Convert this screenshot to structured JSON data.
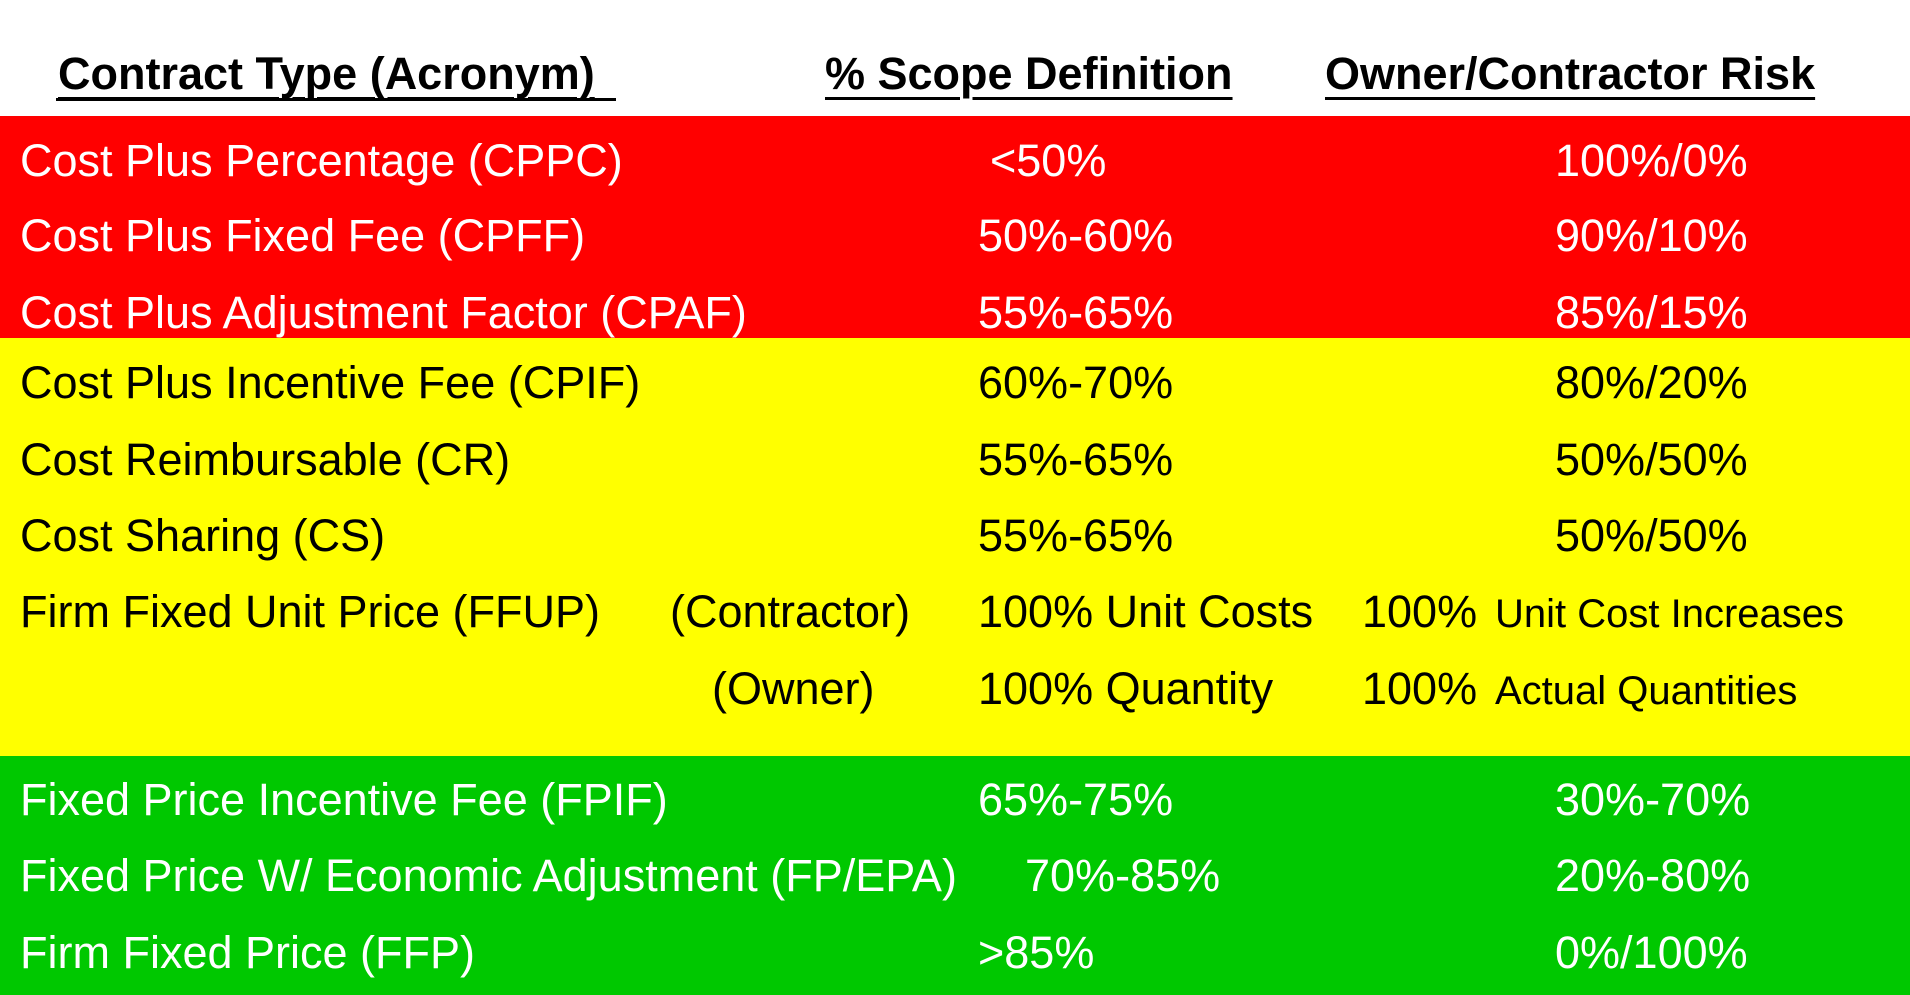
{
  "headers": {
    "contract_type": "Contract Type (Acronym)",
    "scope": "% Scope Definition",
    "risk": "Owner/Contractor Risk"
  },
  "colors": {
    "red": "#ff0000",
    "yellow": "#ffff00",
    "green": "#00c800"
  },
  "rows": [
    {
      "name": "Cost Plus Percentage (CPPC)",
      "scope": "<50%",
      "risk": "100%/0%"
    },
    {
      "name": "Cost Plus Fixed Fee (CPFF)",
      "scope": "50%-60%",
      "risk": "90%/10%"
    },
    {
      "name": "Cost Plus Adjustment Factor (CPAF)",
      "scope": "55%-65%",
      "risk": "85%/15%"
    },
    {
      "name": "Cost Plus Incentive Fee (CPIF)",
      "scope": "60%-70%",
      "risk": "80%/20%"
    },
    {
      "name": "Cost Reimbursable (CR)",
      "scope": "55%-65%",
      "risk": "50%/50%"
    },
    {
      "name": "Cost Sharing (CS)",
      "scope": "55%-65%",
      "risk": "50%/50%"
    },
    {
      "name": "Firm Fixed Unit Price (FFUP)",
      "party": "(Contractor)",
      "scope": "100% Unit Costs",
      "risk_pct": "100%",
      "risk_text": "Unit Cost Increases"
    },
    {
      "party": "(Owner)",
      "scope": "100% Quantity",
      "risk_pct": "100%",
      "risk_text": "Actual Quantities"
    },
    {
      "name": "Fixed Price Incentive Fee (FPIF)",
      "scope": "65%-75%",
      "risk": "30%-70%"
    },
    {
      "name": "Fixed Price W/ Economic Adjustment (FP/EPA)",
      "scope": "70%-85%",
      "risk": "20%-80%"
    },
    {
      "name": "Firm Fixed Price (FFP)",
      "scope": ">85%",
      "risk": "0%/100%"
    }
  ]
}
